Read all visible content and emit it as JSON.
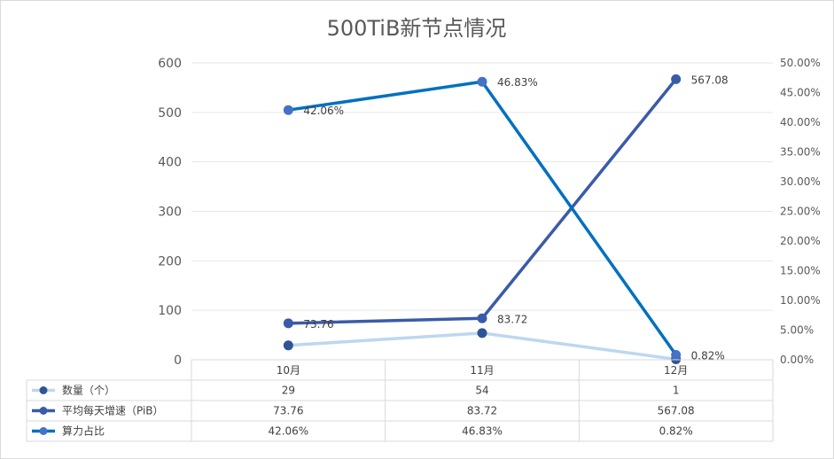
{
  "chart_data": {
    "type": "line",
    "title": "500TiB新节点情况",
    "categories": [
      "10月",
      "11月",
      "12月"
    ],
    "series": [
      {
        "name": "数量（个）",
        "axis": "left",
        "values": [
          29,
          54,
          1
        ],
        "labels": [
          "29",
          "54",
          "1"
        ],
        "color": "#bdd7ee",
        "marker_color": "#2f5597",
        "show_data_labels": false
      },
      {
        "name": "平均每天增速（PiB）",
        "axis": "left",
        "values": [
          73.76,
          83.72,
          567.08
        ],
        "labels": [
          "73.76",
          "83.72",
          "567.08"
        ],
        "color": "#3a5ba8",
        "marker_color": "#3a5ba8",
        "show_data_labels": true
      },
      {
        "name": "算力占比",
        "axis": "right",
        "values": [
          42.06,
          46.83,
          0.82
        ],
        "labels": [
          "42.06%",
          "46.83%",
          "0.82%"
        ],
        "color": "#0070c0",
        "marker_color": "#4472c4",
        "show_data_labels": true
      }
    ],
    "y_left": {
      "min": 0,
      "max": 600,
      "ticks": [
        "0",
        "100",
        "200",
        "300",
        "400",
        "500",
        "600"
      ]
    },
    "y_right": {
      "min": 0,
      "max": 50,
      "ticks": [
        "0.00%",
        "5.00%",
        "10.00%",
        "15.00%",
        "20.00%",
        "25.00%",
        "30.00%",
        "35.00%",
        "40.00%",
        "45.00%",
        "50.00%"
      ]
    },
    "grid": true,
    "legend": "data-table"
  }
}
